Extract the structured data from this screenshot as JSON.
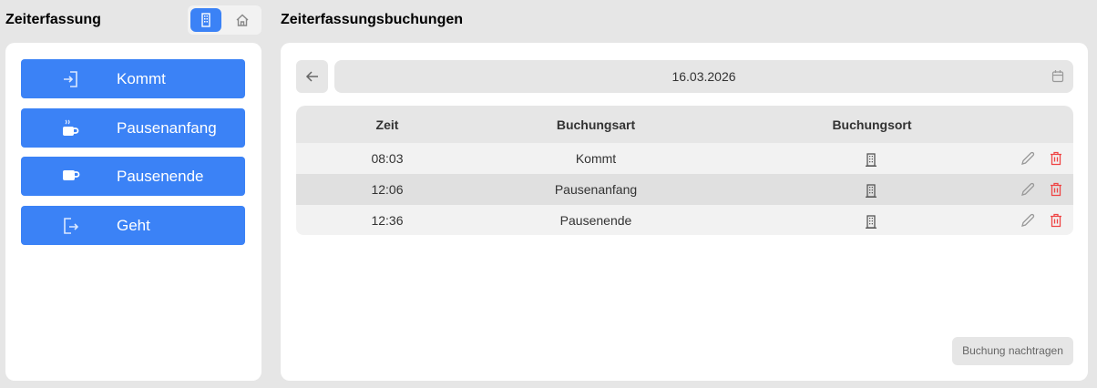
{
  "left": {
    "title": "Zeiterfassung",
    "location_toggle": [
      {
        "icon": "building-icon",
        "active": true
      },
      {
        "icon": "home-icon",
        "active": false
      }
    ],
    "actions": [
      {
        "label": "Kommt",
        "icon": "login-icon"
      },
      {
        "label": "Pausenanfang",
        "icon": "coffee-hot-icon"
      },
      {
        "label": "Pausenende",
        "icon": "coffee-icon"
      },
      {
        "label": "Geht",
        "icon": "logout-icon"
      }
    ]
  },
  "right": {
    "title": "Zeiterfassungsbuchungen",
    "date": "16.03.2026",
    "table": {
      "headers": [
        "Zeit",
        "Buchungsart",
        "Buchungsort"
      ],
      "rows": [
        {
          "time": "08:03",
          "type": "Kommt",
          "location": "building-icon"
        },
        {
          "time": "12:06",
          "type": "Pausenanfang",
          "location": "building-icon"
        },
        {
          "time": "12:36",
          "type": "Pausenende",
          "location": "building-icon"
        }
      ]
    },
    "add_button": "Buchung nachtragen"
  },
  "colors": {
    "accent": "#3b82f6",
    "delete": "#ef4444"
  }
}
